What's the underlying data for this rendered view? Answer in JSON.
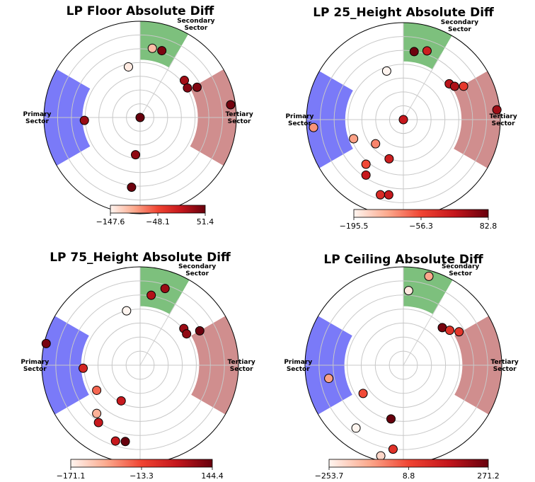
{
  "chart_data": [
    {
      "type": "scatter",
      "subtype": "polar",
      "title": "LP Floor Absolute Diff",
      "sector_labels": {
        "primary": [
          "Primary",
          "Sector"
        ],
        "secondary": [
          "Secondary",
          "Sector"
        ],
        "tertiary": [
          "Tertiary",
          "Sector"
        ]
      },
      "sector_colors": {
        "primary": "#7a7af8",
        "secondary": "#7dc07d",
        "tertiary": "#d08e8e"
      },
      "colorbar": {
        "min": -147.6,
        "max": 51.4,
        "ticks": [
          "−147.6",
          "−48.1",
          "51.4"
        ]
      },
      "points": [
        {
          "angle": 72,
          "radius": 0.73,
          "value": 40
        },
        {
          "angle": 80,
          "radius": 0.73,
          "value": -110
        },
        {
          "angle": 103,
          "radius": 0.54,
          "value": -140
        },
        {
          "angle": 40,
          "radius": 0.6,
          "value": 20
        },
        {
          "angle": 32,
          "radius": 0.58,
          "value": 35
        },
        {
          "angle": 28,
          "radius": 0.67,
          "value": 38
        },
        {
          "angle": 8,
          "radius": 0.95,
          "value": 45
        },
        {
          "angle": 0,
          "radius": 0.0,
          "value": 51
        },
        {
          "angle": 183,
          "radius": 0.58,
          "value": 25
        },
        {
          "angle": 263,
          "radius": 0.39,
          "value": 30
        },
        {
          "angle": 263,
          "radius": 0.73,
          "value": 48
        }
      ]
    },
    {
      "type": "scatter",
      "subtype": "polar",
      "title": "LP 25_Height Absolute Diff",
      "sector_labels": {
        "primary": [
          "Primary",
          "Sector"
        ],
        "secondary": [
          "Secondary",
          "Sector"
        ],
        "tertiary": [
          "Tertiary",
          "Sector"
        ]
      },
      "sector_colors": {
        "primary": "#7a7af8",
        "secondary": "#7dc07d",
        "tertiary": "#d08e8e"
      },
      "colorbar": {
        "min": -195.5,
        "max": 82.8,
        "ticks": [
          "−195.5",
          "−56.3",
          "82.8"
        ]
      },
      "points": [
        {
          "angle": 71,
          "radius": 0.75,
          "value": 0
        },
        {
          "angle": 81,
          "radius": 0.71,
          "value": 78
        },
        {
          "angle": 109,
          "radius": 0.53,
          "value": -195
        },
        {
          "angle": 38,
          "radius": 0.6,
          "value": 20
        },
        {
          "angle": 33,
          "radius": 0.63,
          "value": 30
        },
        {
          "angle": 29,
          "radius": 0.71,
          "value": -40
        },
        {
          "angle": 6,
          "radius": 0.97,
          "value": 40
        },
        {
          "angle": 0,
          "radius": 0.0,
          "value": 10
        },
        {
          "angle": 185,
          "radius": 0.93,
          "value": -110
        },
        {
          "angle": 201,
          "radius": 0.55,
          "value": -120
        },
        {
          "angle": 221,
          "radius": 0.38,
          "value": -100
        },
        {
          "angle": 250,
          "radius": 0.43,
          "value": 0
        },
        {
          "angle": 230,
          "radius": 0.6,
          "value": -60
        },
        {
          "angle": 236,
          "radius": 0.69,
          "value": 10
        },
        {
          "angle": 253,
          "radius": 0.81,
          "value": -20
        },
        {
          "angle": 259,
          "radius": 0.79,
          "value": 10
        }
      ]
    },
    {
      "type": "scatter",
      "subtype": "polar",
      "title": "LP 75_Height Absolute Diff",
      "sector_labels": {
        "primary": [
          "Primary",
          "Sector"
        ],
        "secondary": [
          "Secondary",
          "Sector"
        ],
        "tertiary": [
          "Tertiary",
          "Sector"
        ]
      },
      "sector_colors": {
        "primary": "#7a7af8",
        "secondary": "#7dc07d",
        "tertiary": "#d08e8e"
      },
      "colorbar": {
        "min": -171.1,
        "max": 144.4,
        "ticks": [
          "−171.1",
          "−13.3",
          "144.4"
        ]
      },
      "points": [
        {
          "angle": 72,
          "radius": 0.82,
          "value": 100
        },
        {
          "angle": 81,
          "radius": 0.72,
          "value": 80
        },
        {
          "angle": 104,
          "radius": 0.57,
          "value": -171
        },
        {
          "angle": 40,
          "radius": 0.58,
          "value": 100
        },
        {
          "angle": 34,
          "radius": 0.57,
          "value": 110
        },
        {
          "angle": 30,
          "radius": 0.7,
          "value": 140
        },
        {
          "angle": 167,
          "radius": 0.98,
          "value": 130
        },
        {
          "angle": 183,
          "radius": 0.58,
          "value": 40
        },
        {
          "angle": 210,
          "radius": 0.51,
          "value": -40
        },
        {
          "angle": 242,
          "radius": 0.41,
          "value": 60
        },
        {
          "angle": 228,
          "radius": 0.66,
          "value": -100
        },
        {
          "angle": 234,
          "radius": 0.72,
          "value": 60
        },
        {
          "angle": 252,
          "radius": 0.81,
          "value": 60
        },
        {
          "angle": 259,
          "radius": 0.79,
          "value": 144
        }
      ]
    },
    {
      "type": "scatter",
      "subtype": "polar",
      "title": "LP Ceiling Absolute Diff",
      "sector_labels": {
        "primary": [
          "Primary",
          "Sector"
        ],
        "secondary": [
          "Secondary",
          "Sector"
        ],
        "tertiary": [
          "Tertiary",
          "Sector"
        ]
      },
      "sector_colors": {
        "primary": "#7a7af8",
        "secondary": "#7dc07d",
        "tertiary": "#d08e8e"
      },
      "colorbar": {
        "min": -253.7,
        "max": 271.2,
        "ticks": [
          "−253.7",
          "8.8",
          "271.2"
        ]
      },
      "points": [
        {
          "angle": 74,
          "radius": 0.94,
          "value": -120
        },
        {
          "angle": 86,
          "radius": 0.76,
          "value": -230
        },
        {
          "angle": 44,
          "radius": 0.55,
          "value": 250
        },
        {
          "angle": 37,
          "radius": 0.59,
          "value": 60
        },
        {
          "angle": 31,
          "radius": 0.66,
          "value": 50
        },
        {
          "angle": 190,
          "radius": 0.77,
          "value": -110
        },
        {
          "angle": 215,
          "radius": 0.5,
          "value": 0
        },
        {
          "angle": 257,
          "radius": 0.56,
          "value": 271
        },
        {
          "angle": 233,
          "radius": 0.8,
          "value": -253
        },
        {
          "angle": 256,
          "radius": 0.95,
          "value": -200
        },
        {
          "angle": 263,
          "radius": 0.86,
          "value": 60
        }
      ]
    }
  ]
}
